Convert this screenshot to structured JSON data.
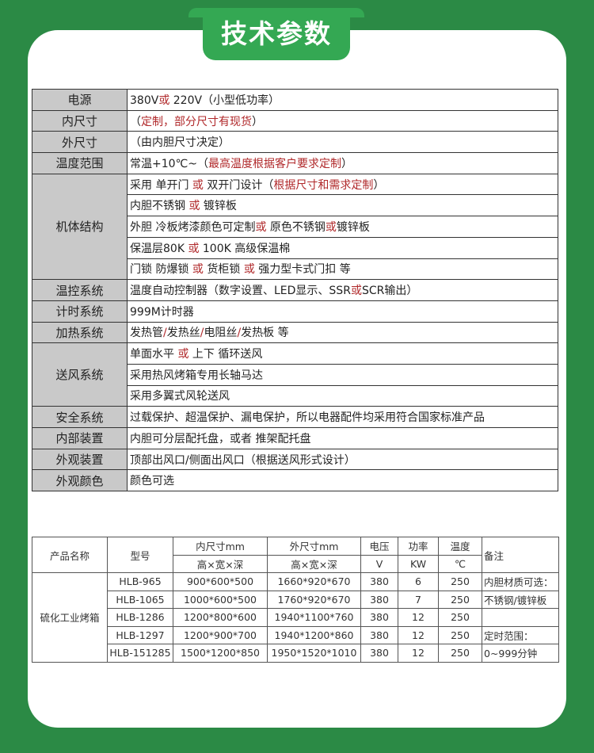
{
  "title": "技术参数",
  "spec_rows": [
    {
      "label": "电源",
      "lines": [
        [
          [
            "380V",
            0
          ],
          [
            "或",
            1
          ],
          [
            " 220V（小型低功率）",
            0
          ]
        ]
      ]
    },
    {
      "label": "内尺寸",
      "lines": [
        [
          [
            "（",
            0
          ],
          [
            "定制，部分尺寸有现货",
            1
          ],
          [
            "）",
            0
          ]
        ]
      ]
    },
    {
      "label": "外尺寸",
      "lines": [
        [
          [
            "（由内胆尺寸决定）",
            0
          ]
        ]
      ]
    },
    {
      "label": "温度范围",
      "lines": [
        [
          [
            "常温+10℃~（",
            0
          ],
          [
            "最高温度根据客户要求定制",
            1
          ],
          [
            "）",
            0
          ]
        ]
      ]
    },
    {
      "label": "机体结构",
      "lines": [
        [
          [
            "采用 单开门 ",
            0
          ],
          [
            "或",
            1
          ],
          [
            " 双开门设计（",
            0
          ],
          [
            "根据尺寸和需求定制",
            1
          ],
          [
            "）",
            0
          ]
        ],
        [
          [
            "内胆不锈钢 ",
            0
          ],
          [
            "或",
            1
          ],
          [
            " 镀锌板",
            0
          ]
        ],
        [
          [
            "外胆 冷板烤漆颜色可定制",
            0
          ],
          [
            "或",
            1
          ],
          [
            " 原色不锈钢",
            0
          ],
          [
            "或",
            1
          ],
          [
            "镀锌板",
            0
          ]
        ],
        [
          [
            "保温层80K ",
            0
          ],
          [
            "或",
            1
          ],
          [
            " 100K 高级保温棉",
            0
          ]
        ],
        [
          [
            "门锁 防爆锁 ",
            0
          ],
          [
            "或",
            1
          ],
          [
            " 货柜锁 ",
            0
          ],
          [
            "或",
            1
          ],
          [
            " 强力型卡式门扣 等",
            0
          ]
        ]
      ]
    },
    {
      "label": "温控系统",
      "lines": [
        [
          [
            "温度自动控制器（数字设置、LED显示、SSR",
            0
          ],
          [
            "或",
            1
          ],
          [
            "SCR输出）",
            0
          ]
        ]
      ]
    },
    {
      "label": "计时系统",
      "lines": [
        [
          [
            "999M计时器",
            0
          ]
        ]
      ]
    },
    {
      "label": "加热系统",
      "lines": [
        [
          [
            "发热管",
            0
          ],
          [
            "/",
            1
          ],
          [
            "发热丝",
            0
          ],
          [
            "/",
            1
          ],
          [
            "电阻丝",
            0
          ],
          [
            "/",
            1
          ],
          [
            "发热板 等",
            0
          ]
        ]
      ]
    },
    {
      "label": "送风系统",
      "lines": [
        [
          [
            "单面水平 ",
            0
          ],
          [
            "或",
            1
          ],
          [
            " 上下 循环送风",
            0
          ]
        ],
        [
          [
            "采用热风烤箱专用长轴马达",
            0
          ]
        ],
        [
          [
            "采用多翼式风轮送风",
            0
          ]
        ]
      ]
    },
    {
      "label": "安全系统",
      "lines": [
        [
          [
            "过载保护、超温保护、漏电保护，所以电器配件均采用符合国家标准产品",
            0
          ]
        ]
      ]
    },
    {
      "label": "内部装置",
      "lines": [
        [
          [
            "内胆可分层配托盘，或者 推架配托盘",
            0
          ]
        ]
      ]
    },
    {
      "label": "外观装置",
      "lines": [
        [
          [
            "顶部出风口/侧面出风口（根据送风形式设计）",
            0
          ]
        ]
      ]
    },
    {
      "label": "外观颜色",
      "lines": [
        [
          [
            "颜色可选",
            0
          ]
        ]
      ]
    }
  ],
  "models": {
    "headers": {
      "product": "产品名称",
      "model": "型号",
      "inner": "内尺寸mm",
      "inner_sub": "高×宽×深",
      "outer": "外尺寸mm",
      "outer_sub": "高×宽×深",
      "voltage": "电压",
      "voltage_unit": "V",
      "power": "功率",
      "power_unit": "KW",
      "temp": "温度",
      "temp_unit": "℃",
      "note": "备注"
    },
    "product_name": "硫化工业烤箱",
    "rows": [
      [
        "HLB-965",
        "900*600*500",
        "1660*920*670",
        "380",
        "6",
        "250",
        "内胆材质可选："
      ],
      [
        "HLB-1065",
        "1000*600*500",
        "1760*920*670",
        "380",
        "7",
        "250",
        "不锈钢/镀锌板"
      ],
      [
        "HLB-1286",
        "1200*800*600",
        "1940*1100*760",
        "380",
        "12",
        "250",
        ""
      ],
      [
        "HLB-1297",
        "1200*900*700",
        "1940*1200*860",
        "380",
        "12",
        "250",
        "定时范围："
      ],
      [
        "HLB-151285",
        "1500*1200*850",
        "1950*1520*1010",
        "380",
        "12",
        "250",
        "0~999分钟"
      ]
    ]
  },
  "colors": {
    "background": "#2b8a45",
    "tab": "#34a853",
    "highlight": "#b0282a",
    "label_cell": "#c9c9c9"
  }
}
